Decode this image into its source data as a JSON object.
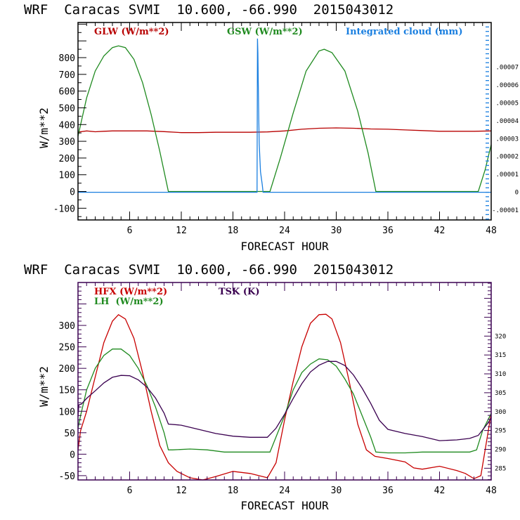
{
  "chart_data": [
    {
      "type": "line",
      "title": "WRF  Caracas SVMI  10.600, -66.990  2015043012",
      "xlabel": "FORECAST HOUR",
      "ylabel": "W/m**2",
      "xlim": [
        0,
        48
      ],
      "ylim": [
        -170,
        1010
      ],
      "xticks": [
        6,
        12,
        18,
        24,
        30,
        36,
        42,
        48
      ],
      "yticks": [
        -100,
        0,
        100,
        200,
        300,
        400,
        500,
        600,
        700,
        800
      ],
      "y2ticks": [
        "-.00001",
        "0",
        ".00001",
        ".00002",
        ".00003",
        ".00004",
        ".00005",
        ".00006",
        ".00007"
      ],
      "y2lim": [
        -1.55e-05,
        9.5e-05
      ],
      "legend": [
        "GLW (W/m**2)",
        "GSW (W/m**2)",
        "Integrated cloud (mm)"
      ],
      "legend_placement": "top",
      "series": [
        {
          "name": "GLW (W/m**2)",
          "color": "#b80000",
          "axis": "left",
          "x": [
            0,
            1,
            2,
            3,
            4,
            6,
            8,
            10,
            12,
            14,
            16,
            18,
            20,
            22,
            24,
            26,
            28,
            30,
            32,
            34,
            36,
            38,
            40,
            42,
            44,
            46,
            48
          ],
          "y": [
            355,
            362,
            357,
            360,
            362,
            362,
            362,
            358,
            352,
            352,
            354,
            354,
            354,
            356,
            362,
            372,
            378,
            380,
            378,
            374,
            372,
            368,
            364,
            360,
            360,
            360,
            362
          ]
        },
        {
          "name": "GSW (W/m**2)",
          "color": "#1f8a1f",
          "axis": "left",
          "x": [
            0,
            1,
            2,
            3,
            4,
            4.7,
            5.5,
            6.5,
            7.5,
            8.5,
            9.5,
            10.5,
            12,
            20,
            22.3,
            23.5,
            25,
            26.5,
            28,
            28.6,
            29.5,
            31,
            32.5,
            33.7,
            34.6,
            36,
            46.5,
            47.3,
            48
          ],
          "y": [
            330,
            560,
            720,
            810,
            860,
            870,
            860,
            790,
            650,
            460,
            240,
            0,
            0,
            0,
            0,
            200,
            470,
            720,
            840,
            850,
            830,
            720,
            480,
            230,
            0,
            0,
            0,
            130,
            280
          ]
        },
        {
          "name": "Integrated cloud (mm)",
          "color": "#1a7fe0",
          "axis": "right",
          "x": [
            0,
            20.8,
            20.85,
            20.9,
            20.95,
            21.0,
            21.05,
            21.2,
            21.4,
            21.5,
            48
          ],
          "y": [
            0,
            0,
            8.6e-05,
            7.8e-05,
            6e-05,
            4e-05,
            2.7e-05,
            1.15e-05,
            4.5e-06,
            0,
            0
          ]
        }
      ]
    },
    {
      "type": "line",
      "title": "WRF  Caracas SVMI  10.600, -66.990  2015043012",
      "xlabel": "FORECAST HOUR",
      "ylabel": "W/m**2",
      "xlim": [
        0,
        48
      ],
      "ylim": [
        -60,
        400
      ],
      "xticks": [
        6,
        12,
        18,
        24,
        30,
        36,
        42,
        48
      ],
      "yticks": [
        -50,
        0,
        50,
        100,
        150,
        200,
        250,
        300
      ],
      "y2ticks": [
        "285",
        "290",
        "295",
        "300",
        "305",
        "310",
        "315",
        "320"
      ],
      "y2lim": [
        281.9,
        334.2
      ],
      "legend": [
        "HFX (W/m**2)",
        "LH  (W/m**2)",
        "TSK (K)"
      ],
      "legend_placement": "top-left",
      "series": [
        {
          "name": "HFX (W/m**2)",
          "color": "#c80000",
          "axis": "left",
          "x": [
            0,
            0.3,
            1,
            2,
            3,
            4,
            4.7,
            5.5,
            6.5,
            7.5,
            8.5,
            9.5,
            10.5,
            11.5,
            13,
            14.5,
            16,
            18,
            20,
            22,
            23,
            24,
            25,
            26,
            27,
            28,
            28.8,
            29.5,
            30.5,
            31.5,
            32.5,
            33.5,
            34.5,
            36,
            38,
            39,
            40,
            42,
            44,
            45,
            46,
            46.8,
            48
          ],
          "y": [
            10,
            55,
            100,
            180,
            260,
            310,
            325,
            315,
            270,
            190,
            100,
            20,
            -20,
            -40,
            -55,
            -60,
            -52,
            -40,
            -45,
            -55,
            -20,
            80,
            170,
            250,
            305,
            325,
            326,
            315,
            260,
            170,
            70,
            10,
            -5,
            -10,
            -18,
            -32,
            -35,
            -28,
            -38,
            -45,
            -57,
            -50,
            95
          ]
        },
        {
          "name": "LH  (W/m**2)",
          "color": "#1f8a1f",
          "axis": "left",
          "x": [
            0,
            0.3,
            1,
            2,
            3,
            4,
            5,
            6,
            7,
            8,
            9,
            10,
            10.5,
            11,
            13,
            15,
            17,
            19,
            21,
            22.3,
            23,
            24,
            25,
            26,
            27,
            28,
            29,
            30,
            31,
            32,
            33,
            34,
            34.6,
            36,
            38,
            40,
            42,
            44,
            45.5,
            46.3,
            47,
            48
          ],
          "y": [
            60,
            90,
            150,
            200,
            230,
            245,
            245,
            230,
            200,
            160,
            110,
            50,
            10,
            10,
            12,
            10,
            5,
            5,
            5,
            5,
            40,
            90,
            150,
            190,
            210,
            222,
            220,
            205,
            175,
            140,
            90,
            40,
            5,
            3,
            3,
            5,
            5,
            5,
            5,
            10,
            55,
            95
          ]
        },
        {
          "name": "TSK (K)",
          "color": "#3a0050",
          "axis": "right",
          "x": [
            0,
            0.1,
            0.4,
            1,
            2,
            3,
            4,
            5,
            6,
            7,
            8,
            9,
            10,
            10.5,
            12,
            14,
            16,
            18,
            20,
            22,
            23,
            24,
            25,
            26,
            27,
            28,
            29,
            30,
            31,
            32,
            33,
            34,
            35,
            36,
            38,
            40,
            42,
            44,
            45.5,
            46.5,
            47.5,
            48
          ],
          "y": [
            298.7,
            301.8,
            302,
            303.5,
            305.5,
            307.6,
            309.1,
            309.6,
            309.5,
            308.4,
            306.5,
            303.6,
            299.6,
            296.7,
            296.4,
            295.3,
            294.2,
            293.5,
            293.2,
            293.2,
            295.6,
            299.3,
            303.5,
            307.4,
            310.5,
            312.3,
            313.3,
            313.3,
            312.2,
            309.7,
            306.2,
            302.2,
            297.7,
            295.3,
            294.2,
            293.4,
            292.3,
            292.5,
            292.9,
            293.7,
            296.6,
            298.3
          ]
        }
      ]
    }
  ],
  "panels": [
    {
      "title": "WRF  Caracas SVMI  10.600, -66.990  2015043012",
      "xlabel": "FORECAST HOUR",
      "ylabel": "W/m**2",
      "xticks": [
        "6",
        "12",
        "18",
        "24",
        "30",
        "36",
        "42",
        "48"
      ],
      "yticks": [
        "-100",
        "0",
        "100",
        "200",
        "300",
        "400",
        "500",
        "600",
        "700",
        "800"
      ],
      "y2ticks": [
        "-.00001",
        "0",
        ".00001",
        ".00002",
        ".00003",
        ".00004",
        ".00005",
        ".00006",
        ".00007"
      ],
      "legend": [
        "GLW (W/m**2)",
        "GSW (W/m**2)",
        "Integrated cloud (mm)"
      ]
    },
    {
      "title": "WRF  Caracas SVMI  10.600, -66.990  2015043012",
      "xlabel": "FORECAST HOUR",
      "ylabel": "W/m**2",
      "xticks": [
        "6",
        "12",
        "18",
        "24",
        "30",
        "36",
        "42",
        "48"
      ],
      "yticks": [
        "-50",
        "0",
        "50",
        "100",
        "150",
        "200",
        "250",
        "300"
      ],
      "y2ticks": [
        "285",
        "290",
        "295",
        "300",
        "305",
        "310",
        "315",
        "320"
      ],
      "legend": [
        "HFX (W/m**2)",
        "LH  (W/m**2)",
        "TSK (K)"
      ]
    }
  ],
  "colors": {
    "axis_top": "#000000",
    "axis_bottom": "#3a0050",
    "right_axis_top": "#1a7fe0"
  }
}
